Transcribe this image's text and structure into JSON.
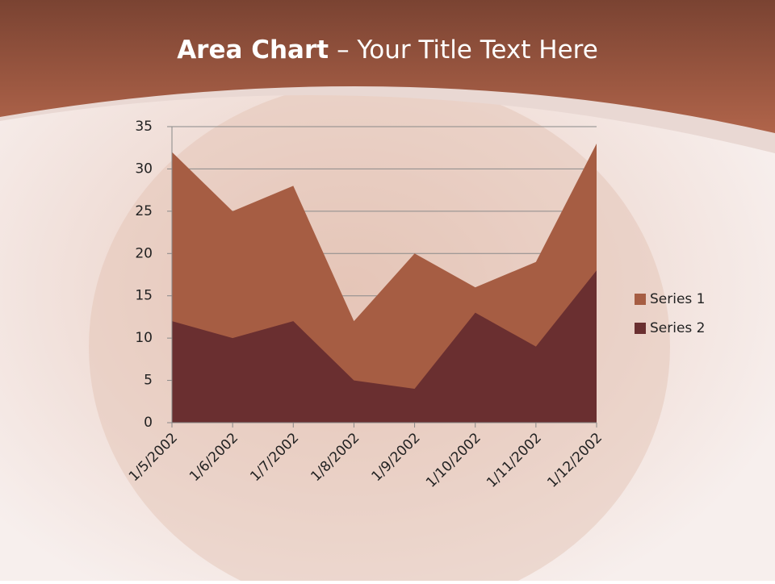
{
  "chart_data": {
    "type": "area",
    "title_parts": [
      "Area Chart",
      "– Your Title Text Here"
    ],
    "categories": [
      "1/5/2002",
      "1/6/2002",
      "1/7/2002",
      "1/8/2002",
      "1/9/2002",
      "1/10/2002",
      "1/11/2002",
      "1/12/2002"
    ],
    "series": [
      {
        "name": "Series 1",
        "color": "#a65d43",
        "values": [
          32,
          25,
          28,
          12,
          20,
          16,
          19,
          33
        ]
      },
      {
        "name": "Series 2",
        "color": "#6a2f30",
        "values": [
          12,
          10,
          12,
          5,
          4,
          13,
          9,
          18
        ]
      }
    ],
    "ylim": [
      0,
      35
    ],
    "yticks": [
      0,
      5,
      10,
      15,
      20,
      25,
      30,
      35
    ],
    "grid": true,
    "legend": "right"
  }
}
